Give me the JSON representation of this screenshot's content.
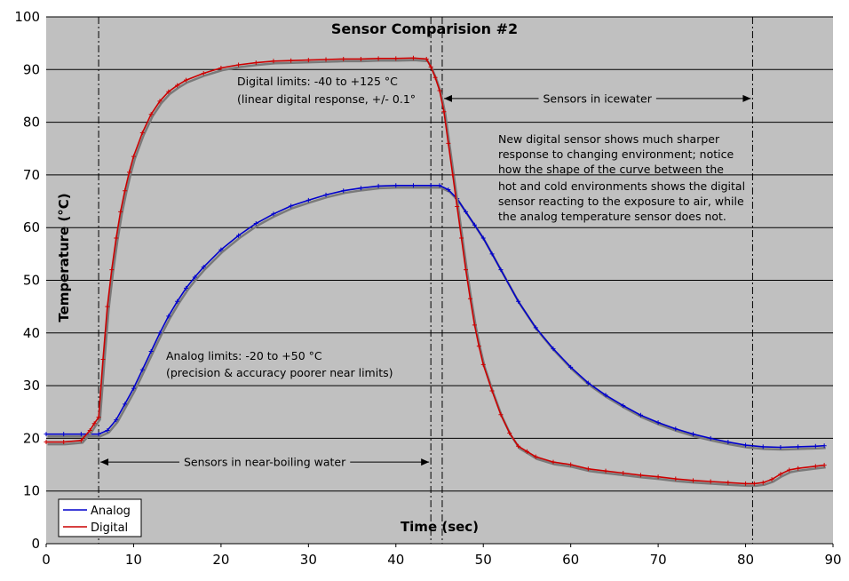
{
  "chart_data": {
    "type": "line",
    "title": "Sensor Comparision #2",
    "xlabel": "Time (sec)",
    "ylabel": "Temperature (°C)",
    "xlim": [
      0,
      90
    ],
    "ylim": [
      0,
      100
    ],
    "x_ticks": [
      0,
      10,
      20,
      30,
      40,
      50,
      60,
      70,
      80,
      90
    ],
    "y_ticks": [
      0,
      10,
      20,
      30,
      40,
      50,
      60,
      70,
      80,
      90,
      100
    ],
    "grid": "horizontal",
    "legend_position": "bottom-left",
    "series": [
      {
        "name": "Analog",
        "color": "#0000cc",
        "x": [
          0,
          2,
          4,
          6,
          7,
          8,
          9,
          10,
          11,
          12,
          13,
          14,
          15,
          16,
          17,
          18,
          20,
          22,
          24,
          26,
          28,
          30,
          32,
          34,
          36,
          38,
          40,
          42,
          44,
          45,
          46,
          47,
          48,
          49,
          50,
          51,
          52,
          54,
          56,
          58,
          60,
          62,
          64,
          66,
          68,
          70,
          72,
          74,
          76,
          78,
          80,
          82,
          84,
          86,
          88,
          89
        ],
        "y": [
          20.8,
          20.8,
          20.8,
          20.8,
          21.5,
          23.5,
          26.5,
          29.5,
          33,
          36.5,
          40,
          43.2,
          46,
          48.5,
          50.6,
          52.5,
          55.8,
          58.5,
          60.8,
          62.6,
          64.1,
          65.2,
          66.2,
          67,
          67.5,
          67.9,
          68,
          68,
          68,
          68,
          67.2,
          65.5,
          63,
          60.5,
          58,
          55,
          52,
          46,
          41,
          37,
          33.5,
          30.5,
          28.2,
          26.2,
          24.4,
          23,
          21.8,
          20.8,
          20,
          19.3,
          18.7,
          18.4,
          18.3,
          18.4,
          18.5,
          18.6
        ]
      },
      {
        "name": "Digital",
        "color": "#cc0000",
        "x": [
          0,
          2,
          4,
          5,
          5.5,
          6,
          6.5,
          7,
          7.5,
          8,
          8.5,
          9,
          9.5,
          10,
          11,
          12,
          13,
          14,
          15,
          16,
          18,
          20,
          22,
          24,
          26,
          28,
          30,
          32,
          34,
          36,
          38,
          40,
          42,
          43.5,
          44,
          44.5,
          45,
          45.5,
          46,
          46.5,
          47,
          47.5,
          48,
          48.5,
          49,
          49.5,
          50,
          51,
          52,
          53,
          54,
          55,
          56,
          58,
          60,
          62,
          64,
          66,
          68,
          70,
          72,
          74,
          76,
          78,
          80,
          81,
          82,
          83,
          84,
          85,
          86,
          88,
          89
        ],
        "y": [
          19.3,
          19.3,
          19.6,
          21.5,
          22.8,
          24,
          35,
          45,
          52,
          58,
          63,
          67,
          70.5,
          73.5,
          78,
          81.5,
          84,
          85.8,
          87,
          88,
          89.3,
          90.3,
          90.9,
          91.3,
          91.6,
          91.7,
          91.8,
          91.9,
          92,
          92,
          92.1,
          92.1,
          92.2,
          92,
          90.5,
          88.5,
          86,
          82,
          76,
          70,
          64,
          58,
          52,
          46.5,
          41.5,
          37.5,
          34,
          29,
          24.5,
          21,
          18.5,
          17.5,
          16.5,
          15.5,
          15,
          14.2,
          13.8,
          13.4,
          13,
          12.7,
          12.3,
          12,
          11.8,
          11.6,
          11.4,
          11.4,
          11.6,
          12.2,
          13.2,
          14,
          14.3,
          14.7,
          14.9
        ]
      }
    ],
    "vertical_lines_x": [
      6,
      44,
      45.3,
      80.8
    ],
    "spans": [
      {
        "x1": 6,
        "x2": 44,
        "y": 15.5,
        "label": "Sensors in near-boiling water"
      },
      {
        "x1": 45.3,
        "x2": 80.8,
        "y": 84.5,
        "label": "Sensors in icewater"
      }
    ],
    "annotations": [
      {
        "id": "digital-limits",
        "lines": [
          "Digital limits: -40 to +125 °C",
          "(linear digital response, +/- 0.1°"
        ]
      },
      {
        "id": "analog-limits",
        "lines": [
          "Analog limits: -20 to +50 °C",
          "(precision & accuracy poorer near limits)"
        ]
      },
      {
        "id": "comparison-note",
        "lines": [
          "New digital sensor shows much sharper",
          "response to changing environment; notice",
          "how the shape of the curve between the",
          "hot and cold environments shows the digital",
          "sensor reacting to the exposure to air, while",
          "the analog temperature sensor does not."
        ]
      }
    ],
    "colors": {
      "plot_background": "#c0c0c0",
      "gridline": "#000000"
    }
  }
}
